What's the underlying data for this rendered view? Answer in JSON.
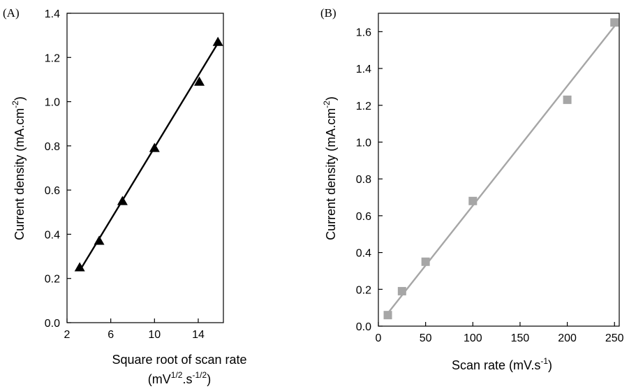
{
  "chart_data": [
    {
      "type": "scatter",
      "panel_label": "(A)",
      "xlabel": "Square root of scan rate",
      "xlabel_units": {
        "base": "(mV",
        "sup1": "1/2",
        "mid": ".s",
        "sup2": "-1/2",
        "end": ")"
      },
      "ylabel": {
        "base": "Current density (mA.cm",
        "sup": "-2",
        "end": ")"
      },
      "xlim": [
        2,
        16.3
      ],
      "ylim": [
        0,
        1.4
      ],
      "xticks": [
        2,
        6,
        10,
        14
      ],
      "xticklabels": [
        "2",
        "6",
        "10",
        "14"
      ],
      "yticks": [
        0.0,
        0.2,
        0.4,
        0.6,
        0.8,
        1.0,
        1.2,
        1.4
      ],
      "yticklabels": [
        "0.0",
        "0.2",
        "0.4",
        "0.6",
        "0.8",
        "1.0",
        "1.2",
        "1.4"
      ],
      "grid": false,
      "series": [
        {
          "marker": "triangle",
          "color": "#000000",
          "x": [
            3.16,
            4.94,
            7.07,
            10.0,
            14.1,
            15.8
          ],
          "y": [
            0.25,
            0.37,
            0.55,
            0.79,
            1.09,
            1.27
          ],
          "fit_line": {
            "x": [
              3.16,
              15.8
            ],
            "y": [
              0.235,
              1.265
            ]
          }
        }
      ]
    },
    {
      "type": "scatter",
      "panel_label": "(B)",
      "xlabel": {
        "base": "Scan rate (mV.s",
        "sup": "-1",
        "end": ")"
      },
      "ylabel": {
        "base": "Current density (mA.cm",
        "sup": "-2",
        "end": ")"
      },
      "xlim": [
        0,
        255
      ],
      "ylim": [
        0,
        1.7
      ],
      "xticks": [
        0,
        50,
        100,
        150,
        200,
        250
      ],
      "xticklabels": [
        "0",
        "50",
        "100",
        "150",
        "200",
        "250"
      ],
      "yticks": [
        0.0,
        0.2,
        0.4,
        0.6,
        0.8,
        1.0,
        1.2,
        1.4,
        1.6
      ],
      "yticklabels": [
        "0.0",
        "0.2",
        "0.4",
        "0.6",
        "0.8",
        "1.0",
        "1.2",
        "1.4",
        "1.6"
      ],
      "grid": false,
      "series": [
        {
          "marker": "square",
          "color": "#a6a6a6",
          "x": [
            10,
            25,
            50,
            100,
            200,
            250
          ],
          "y": [
            0.06,
            0.19,
            0.35,
            0.68,
            1.23,
            1.65
          ],
          "fit_line": {
            "x": [
              10,
              250
            ],
            "y": [
              0.07,
              1.63
            ]
          }
        }
      ]
    }
  ]
}
